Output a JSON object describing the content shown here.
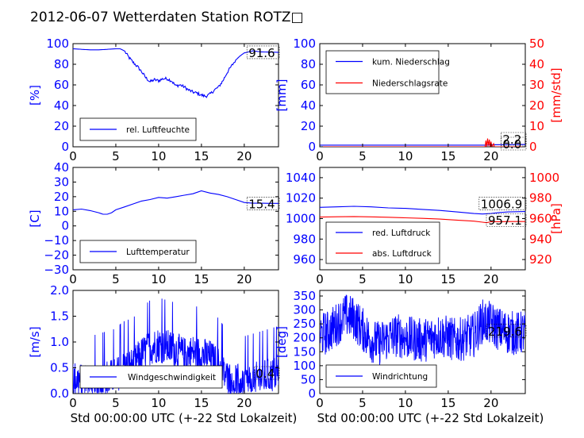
{
  "figure": {
    "title": "2012-06-07 Wetterdaten Station ROTZ□"
  },
  "chart_data": [
    {
      "id": "humidity",
      "type": "line",
      "xlim": [
        0,
        24
      ],
      "ylim": [
        0,
        100
      ],
      "xticks": [
        0,
        5,
        10,
        15,
        20
      ],
      "yticks": [
        0,
        20,
        40,
        60,
        80,
        100
      ],
      "ylabel": "[%]",
      "ylabel_color": "#0000ff",
      "xlabel": "",
      "legend_loc": "lower-left",
      "last_value_label": "91.6",
      "series": [
        {
          "name": "rel. Luftfeuchte",
          "color": "#0000ff",
          "points": [
            [
              0,
              95
            ],
            [
              1,
              94.5
            ],
            [
              2,
              94
            ],
            [
              3,
              94
            ],
            [
              4,
              94.5
            ],
            [
              5,
              95
            ],
            [
              5.5,
              95
            ],
            [
              6,
              93
            ],
            [
              6.5,
              87
            ],
            [
              7,
              82
            ],
            [
              7.5,
              78
            ],
            [
              8,
              73
            ],
            [
              8.5,
              67
            ],
            [
              9,
              63
            ],
            [
              9.5,
              65
            ],
            [
              10,
              64
            ],
            [
              10.5,
              66
            ],
            [
              11,
              66
            ],
            [
              11.5,
              64
            ],
            [
              12,
              59
            ],
            [
              12.5,
              60
            ],
            [
              13,
              58
            ],
            [
              13.5,
              55
            ],
            [
              14,
              53
            ],
            [
              14.5,
              52
            ],
            [
              15,
              50
            ],
            [
              15.5,
              49
            ],
            [
              16,
              51
            ],
            [
              16.5,
              55
            ],
            [
              17,
              58
            ],
            [
              17.5,
              64
            ],
            [
              18,
              72
            ],
            [
              18.5,
              78
            ],
            [
              19,
              84
            ],
            [
              19.5,
              88
            ],
            [
              20,
              91
            ],
            [
              21,
              93
            ],
            [
              22,
              92
            ],
            [
              23,
              91.8
            ],
            [
              24,
              91.6
            ]
          ]
        }
      ]
    },
    {
      "id": "rain",
      "type": "line",
      "xlim": [
        0,
        24
      ],
      "ylim": [
        0,
        100
      ],
      "xticks": [
        0,
        5,
        10,
        15,
        20
      ],
      "yticks": [
        0,
        20,
        40,
        60,
        80,
        100
      ],
      "ylabel": "[mm]",
      "ylabel_color": "#0000ff",
      "y2lim": [
        0,
        50
      ],
      "y2ticks": [
        0,
        10,
        20,
        30,
        40,
        50
      ],
      "y2label": "[mm/std]",
      "y2label_color": "#ff0000",
      "legend_loc": "upper-left",
      "last_value_labels": [
        "2.2",
        "0.0"
      ],
      "series": [
        {
          "name": "kum. Niederschlag",
          "color": "#0000ff",
          "axis": "left",
          "points": [
            [
              0,
              1.6
            ],
            [
              19.5,
              1.6
            ],
            [
              20,
              2.0
            ],
            [
              24,
              2.2
            ]
          ]
        },
        {
          "name": "Niederschlagsrate",
          "color": "#ff0000",
          "axis": "right",
          "points": [
            [
              0,
              0
            ],
            [
              19.3,
              0
            ],
            [
              19.4,
              3
            ],
            [
              19.5,
              0
            ],
            [
              19.6,
              4
            ],
            [
              19.7,
              0.5
            ],
            [
              19.8,
              3.5
            ],
            [
              19.9,
              0
            ],
            [
              20.0,
              2.5
            ],
            [
              20.1,
              0
            ],
            [
              20.3,
              1.5
            ],
            [
              20.4,
              0
            ],
            [
              24,
              0
            ]
          ]
        }
      ]
    },
    {
      "id": "temperature",
      "type": "line",
      "xlim": [
        0,
        24
      ],
      "ylim": [
        -30,
        40
      ],
      "xticks": [
        0,
        5,
        10,
        15,
        20
      ],
      "yticks": [
        -30,
        -20,
        -10,
        0,
        10,
        20,
        30,
        40
      ],
      "ylabel": "[C]",
      "ylabel_color": "#0000ff",
      "legend_loc": "lower-left",
      "last_value_label": "15.4",
      "series": [
        {
          "name": "Lufttemperatur",
          "color": "#0000ff",
          "points": [
            [
              0,
              11
            ],
            [
              1,
              11.5
            ],
            [
              2,
              10.5
            ],
            [
              3,
              9
            ],
            [
              3.5,
              8
            ],
            [
              4,
              8
            ],
            [
              4.5,
              9
            ],
            [
              5,
              11
            ],
            [
              6,
              13
            ],
            [
              7,
              15
            ],
            [
              8,
              17
            ],
            [
              9,
              18
            ],
            [
              10,
              19.5
            ],
            [
              11,
              19
            ],
            [
              12,
              20
            ],
            [
              13,
              21
            ],
            [
              14,
              22
            ],
            [
              15,
              24
            ],
            [
              16,
              22.5
            ],
            [
              17,
              21.5
            ],
            [
              18,
              20
            ],
            [
              19,
              18
            ],
            [
              20,
              16
            ],
            [
              21,
              15.5
            ],
            [
              22,
              15.5
            ],
            [
              23,
              15.4
            ],
            [
              24,
              15.4
            ]
          ]
        }
      ]
    },
    {
      "id": "pressure",
      "type": "line",
      "xlim": [
        0,
        24
      ],
      "ylim": [
        950,
        1050
      ],
      "xticks": [
        0,
        5,
        10,
        15,
        20
      ],
      "yticks": [
        960,
        980,
        1000,
        1020,
        1040
      ],
      "y2lim": [
        910,
        1010
      ],
      "y2ticks": [
        920,
        940,
        960,
        980,
        1000
      ],
      "y2label": "[hPa]",
      "y2label_color": "#ff0000",
      "legend_loc": "lower-left",
      "last_value_labels": [
        "1006.9",
        "957.1"
      ],
      "series": [
        {
          "name": "red. Luftdruck",
          "color": "#0000ff",
          "axis": "left",
          "points": [
            [
              0,
              1011
            ],
            [
              2,
              1011.5
            ],
            [
              4,
              1012
            ],
            [
              6,
              1011.5
            ],
            [
              8,
              1010.5
            ],
            [
              10,
              1010
            ],
            [
              12,
              1009
            ],
            [
              14,
              1008
            ],
            [
              16,
              1006.5
            ],
            [
              18,
              1005
            ],
            [
              19,
              1004.5
            ],
            [
              20,
              1005
            ],
            [
              21,
              1006
            ],
            [
              22,
              1006.5
            ],
            [
              24,
              1006.9
            ]
          ]
        },
        {
          "name": "abs. Luftdruck",
          "color": "#ff0000",
          "axis": "right",
          "points": [
            [
              0,
              961.5
            ],
            [
              2,
              961.8
            ],
            [
              4,
              962
            ],
            [
              6,
              961.7
            ],
            [
              8,
              961.3
            ],
            [
              10,
              960.8
            ],
            [
              12,
              960.2
            ],
            [
              14,
              959.5
            ],
            [
              16,
              958.5
            ],
            [
              18,
              957.5
            ],
            [
              19,
              956.5
            ],
            [
              19.5,
              956
            ],
            [
              20,
              957
            ],
            [
              21,
              957
            ],
            [
              22,
              957.1
            ],
            [
              24,
              957.1
            ]
          ]
        }
      ]
    },
    {
      "id": "windspeed",
      "type": "line",
      "xlim": [
        0,
        24
      ],
      "ylim": [
        0,
        2.0
      ],
      "xticks": [
        0,
        5,
        10,
        15,
        20
      ],
      "yticks": [
        0.0,
        0.5,
        1.0,
        1.5,
        2.0
      ],
      "ylabel": "[m/s]",
      "ylabel_color": "#0000ff",
      "xlabel": "Std 00:00:00 UTC (+-22 Std Lokalzeit)",
      "legend_loc": "lower-center",
      "last_value_label": "0.4",
      "noisy": true,
      "series": [
        {
          "name": "Windgeschwindigkeit",
          "color": "#0000ff",
          "envelope": [
            [
              0,
              0.3
            ],
            [
              1,
              0.25
            ],
            [
              2,
              0.2
            ],
            [
              3,
              0.25
            ],
            [
              4,
              0.3
            ],
            [
              5,
              0.35
            ],
            [
              6,
              0.5
            ],
            [
              7,
              0.55
            ],
            [
              8,
              0.75
            ],
            [
              9,
              0.9
            ],
            [
              10,
              0.95
            ],
            [
              11,
              0.9
            ],
            [
              12,
              0.85
            ],
            [
              13,
              0.75
            ],
            [
              14,
              0.8
            ],
            [
              15,
              0.75
            ],
            [
              16,
              0.7
            ],
            [
              17,
              0.55
            ],
            [
              18,
              0.3
            ],
            [
              19,
              0.25
            ],
            [
              20,
              0.2
            ],
            [
              21,
              0.25
            ],
            [
              22,
              0.3
            ],
            [
              23,
              0.35
            ],
            [
              24,
              0.4
            ]
          ],
          "spread": 0.35
        }
      ]
    },
    {
      "id": "winddir",
      "type": "line",
      "xlim": [
        0,
        24
      ],
      "ylim": [
        0,
        370
      ],
      "xticks": [
        0,
        5,
        10,
        15,
        20
      ],
      "yticks": [
        0,
        50,
        100,
        150,
        200,
        250,
        300,
        350
      ],
      "ylabel": "[deg]",
      "ylabel_color": "#0000ff",
      "xlabel": "Std 00:00:00 UTC (+-22 Std Lokalzeit)",
      "legend_loc": "lower-left",
      "last_value_label": "219.6",
      "noisy": true,
      "series": [
        {
          "name": "Windrichtung",
          "color": "#0000ff",
          "envelope": [
            [
              0,
              210
            ],
            [
              1,
              220
            ],
            [
              2,
              250
            ],
            [
              3,
              280
            ],
            [
              4,
              270
            ],
            [
              5,
              230
            ],
            [
              6,
              190
            ],
            [
              7,
              180
            ],
            [
              8,
              200
            ],
            [
              9,
              210
            ],
            [
              10,
              200
            ],
            [
              11,
              195
            ],
            [
              12,
              190
            ],
            [
              13,
              200
            ],
            [
              14,
              210
            ],
            [
              15,
              200
            ],
            [
              16,
              190
            ],
            [
              17,
              200
            ],
            [
              18,
              210
            ],
            [
              19,
              260
            ],
            [
              20,
              250
            ],
            [
              21,
              230
            ],
            [
              22,
              220
            ],
            [
              23,
              215
            ],
            [
              24,
              219.6
            ]
          ],
          "spread": 80
        }
      ]
    }
  ]
}
